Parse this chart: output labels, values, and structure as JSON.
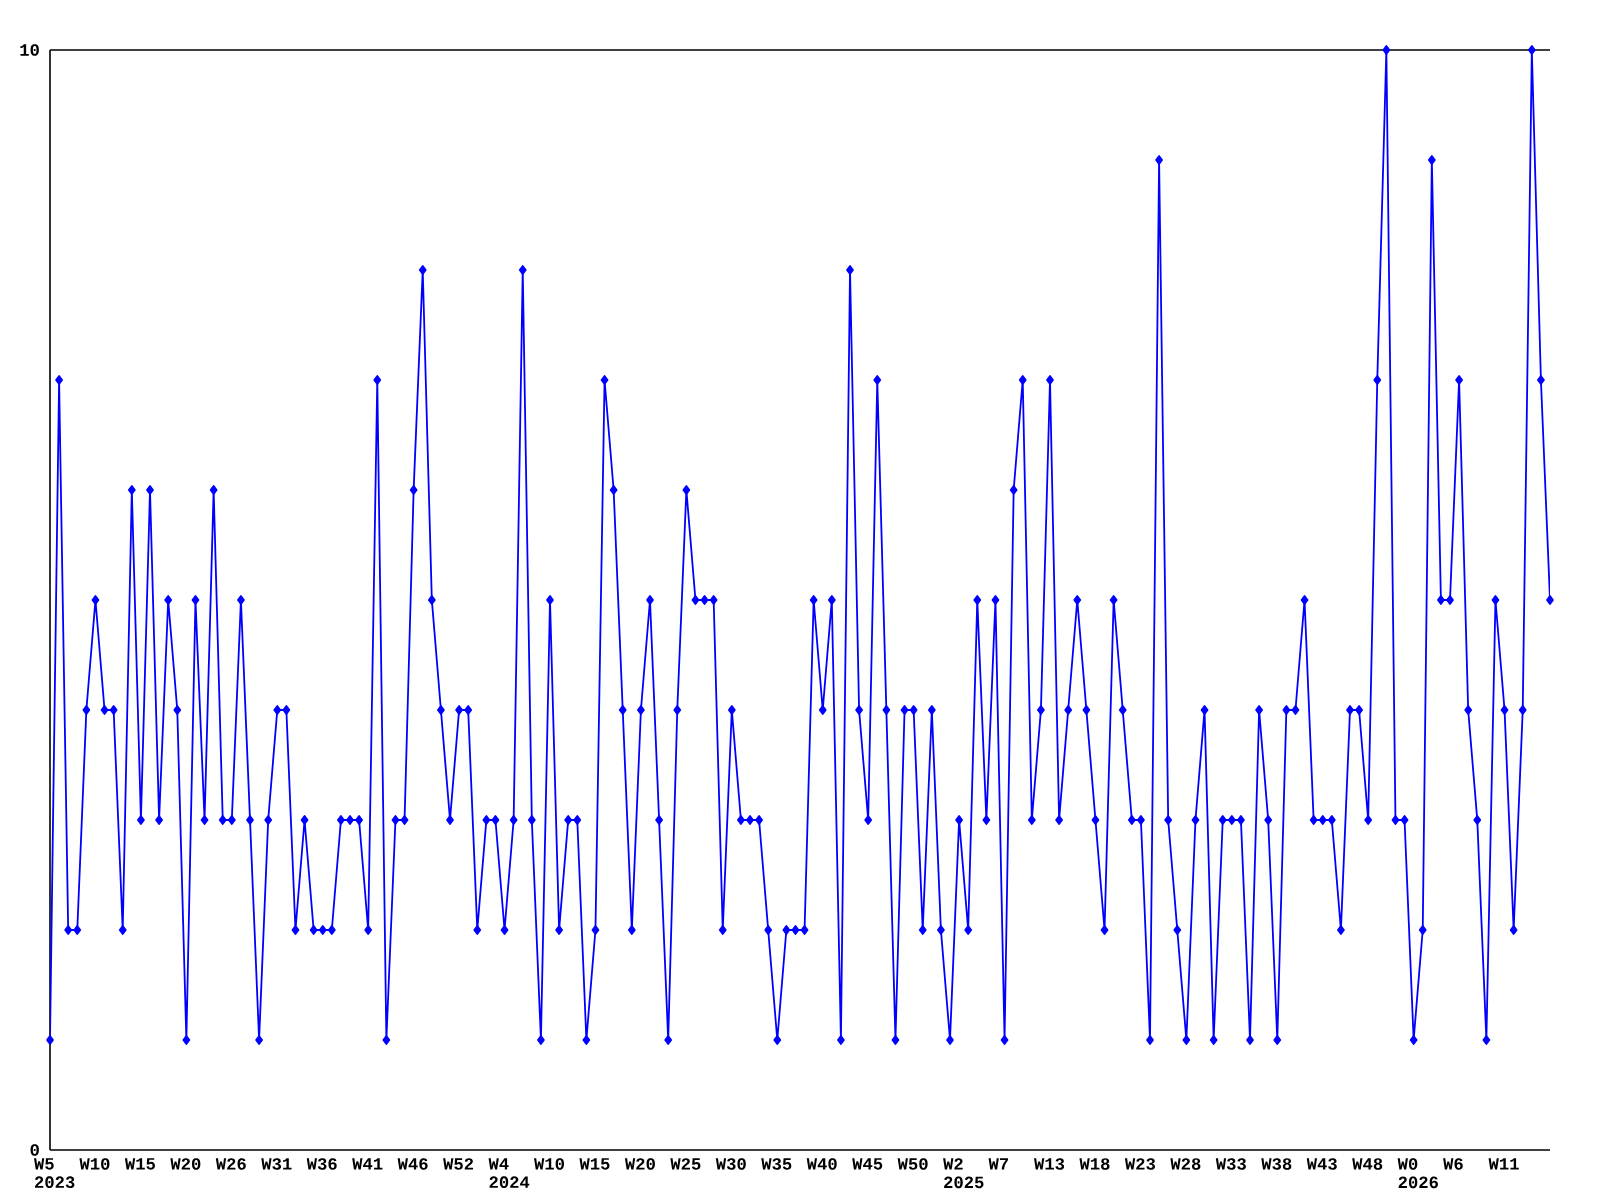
{
  "chart_data": {
    "type": "line",
    "categories": [
      "W5 2023",
      null,
      null,
      null,
      null,
      "W10",
      null,
      null,
      null,
      null,
      "W15",
      null,
      null,
      null,
      null,
      "W20",
      null,
      null,
      null,
      null,
      "W26",
      null,
      null,
      null,
      null,
      "W31",
      null,
      null,
      null,
      null,
      "W36",
      null,
      null,
      null,
      null,
      "W41",
      null,
      null,
      null,
      null,
      "W46",
      null,
      null,
      null,
      null,
      "W52",
      null,
      null,
      null,
      null,
      "W4 2024",
      null,
      null,
      null,
      null,
      "W10",
      null,
      null,
      null,
      null,
      "W15",
      null,
      null,
      null,
      null,
      "W20",
      null,
      null,
      null,
      null,
      "W25",
      null,
      null,
      null,
      null,
      "W30",
      null,
      null,
      null,
      null,
      "W35",
      null,
      null,
      null,
      null,
      "W40",
      null,
      null,
      null,
      null,
      "W45",
      null,
      null,
      null,
      null,
      "W50",
      null,
      null,
      null,
      null,
      "W2 2025",
      null,
      null,
      null,
      null,
      "W7",
      null,
      null,
      null,
      null,
      "W13",
      null,
      null,
      null,
      null,
      "W18",
      null,
      null,
      null,
      null,
      "W23",
      null,
      null,
      null,
      null,
      "W28",
      null,
      null,
      null,
      null,
      "W33",
      null,
      null,
      null,
      null,
      "W38",
      null,
      null,
      null,
      null,
      "W43",
      null,
      null,
      null,
      null,
      "W48",
      null,
      null,
      null,
      null,
      "W0 2026",
      null,
      null,
      null,
      null,
      "W6",
      null,
      null,
      null,
      null,
      "W11",
      null,
      null,
      null,
      null,
      null
    ],
    "values": [
      1,
      7,
      2,
      2,
      4,
      5,
      4,
      4,
      2,
      6,
      3,
      6,
      3,
      5,
      4,
      1,
      5,
      3,
      6,
      3,
      3,
      5,
      3,
      1,
      3,
      4,
      4,
      2,
      3,
      2,
      2,
      2,
      3,
      3,
      3,
      2,
      7,
      1,
      3,
      3,
      6,
      8,
      5,
      4,
      3,
      4,
      4,
      2,
      3,
      3,
      2,
      3,
      8,
      3,
      1,
      5,
      2,
      3,
      3,
      1,
      2,
      7,
      6,
      4,
      2,
      4,
      5,
      3,
      1,
      4,
      6,
      5,
      5,
      5,
      2,
      4,
      3,
      3,
      3,
      2,
      1,
      2,
      2,
      2,
      5,
      4,
      5,
      1,
      8,
      4,
      3,
      7,
      4,
      1,
      4,
      4,
      2,
      4,
      2,
      1,
      3,
      2,
      5,
      3,
      5,
      1,
      6,
      7,
      3,
      4,
      7,
      3,
      4,
      5,
      4,
      3,
      2,
      5,
      4,
      3,
      3,
      1,
      9,
      3,
      2,
      1,
      3,
      4,
      1,
      3,
      3,
      3,
      1,
      4,
      3,
      1,
      4,
      4,
      5,
      3,
      3,
      3,
      2,
      4,
      4,
      3,
      7,
      10,
      3,
      3,
      1,
      2,
      9,
      5,
      5,
      7,
      4,
      3,
      1,
      5,
      4,
      2,
      4,
      10,
      7,
      5
    ],
    "color": "#0000ff",
    "marker": "diamond",
    "ylim": [
      0,
      10
    ],
    "yticks": [
      0,
      10
    ]
  }
}
